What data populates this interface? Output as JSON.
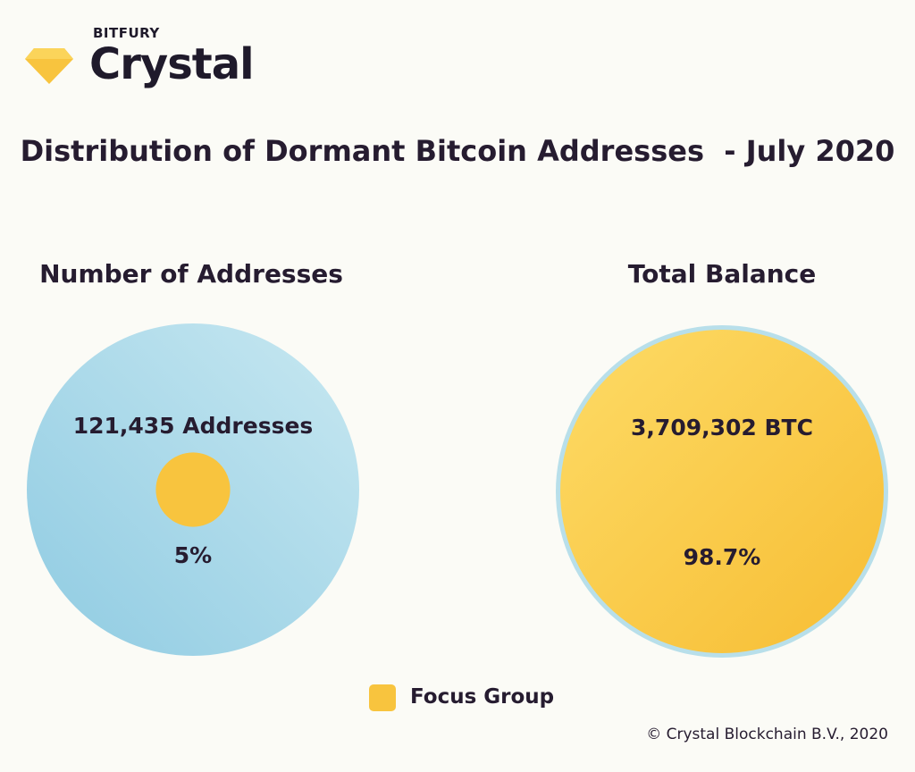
{
  "logo": {
    "brand": "BITFURY",
    "name": "Crystal"
  },
  "title": "Distribution of Dormant Bitcoin Addresses  - July 2020",
  "colors": {
    "focus": "#f8c43e",
    "total_addresses": "#a9d8e8",
    "text": "#261c30",
    "background": "#fbfbf6"
  },
  "chart_data": [
    {
      "type": "pie",
      "title": "Number of Addresses",
      "total_label": "121,435 Addresses",
      "focus_label": "5%",
      "focus_share": 0.05,
      "series": [
        {
          "name": "Focus Group",
          "value": 5
        }
      ]
    },
    {
      "type": "pie",
      "title": "Total Balance",
      "total_label": "3,709,302 BTC",
      "focus_label": "98.7%",
      "focus_share": 0.987,
      "series": [
        {
          "name": "Focus Group",
          "value": 98.7
        }
      ]
    }
  ],
  "legend": {
    "items": [
      {
        "label": "Focus Group",
        "color": "#f8c43e"
      }
    ]
  },
  "footer": {
    "copyright": "© Crystal Blockchain B.V., 2020"
  }
}
